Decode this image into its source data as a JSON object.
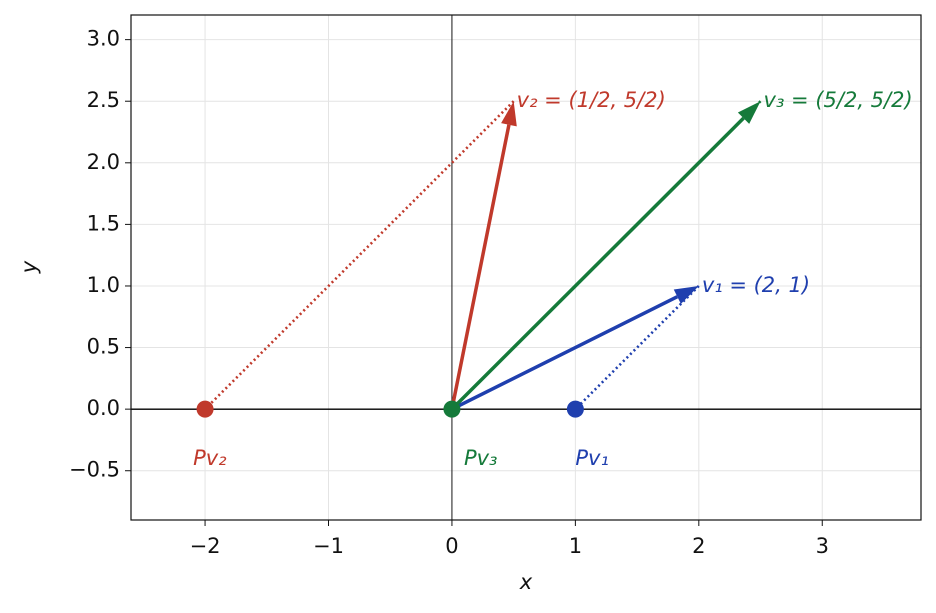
{
  "chart_data": {
    "type": "vector",
    "xlabel": "x",
    "ylabel": "y",
    "xlim": [
      -2.6,
      3.8
    ],
    "ylim": [
      -0.9,
      3.2
    ],
    "xticks": [
      {
        "value": -2,
        "label": "−2"
      },
      {
        "value": -1,
        "label": "−1"
      },
      0,
      1,
      2,
      3
    ],
    "yticks": [
      {
        "value": -0.5,
        "label": "−0.5"
      },
      {
        "value": 0,
        "label": "0.0"
      },
      0.5,
      {
        "value": 1,
        "label": "1.0"
      },
      1.5,
      {
        "value": 2,
        "label": "2.0"
      },
      2.5,
      {
        "value": 3,
        "label": "3.0"
      }
    ],
    "grid": true,
    "vectors": [
      {
        "label": "v₁ = (2, 1)",
        "color": "#1f3fae",
        "x": 2,
        "y": 1,
        "projection": {
          "label": "Pv₁",
          "x": 1,
          "y": 0
        }
      },
      {
        "label": "v₂ = (1/2, 5/2)",
        "color": "#c0392b",
        "x": 0.5,
        "y": 2.5,
        "projection": {
          "label": "Pv₂",
          "x": -2,
          "y": 0
        }
      },
      {
        "label": "v₃ = (5/2, 5/2)",
        "color": "#157a3a",
        "x": 2.5,
        "y": 2.5,
        "projection": {
          "label": "Pv₃",
          "x": 0,
          "y": 0
        }
      }
    ]
  }
}
